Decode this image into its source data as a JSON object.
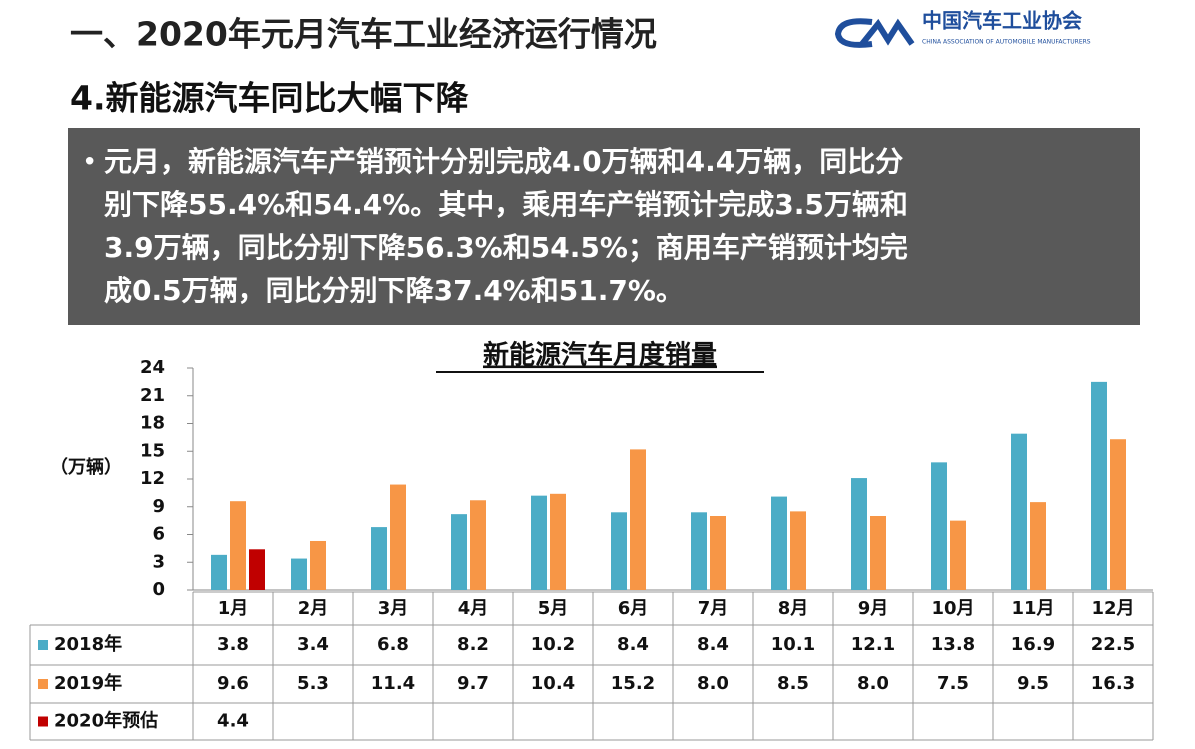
{
  "header": {
    "title": "一、2020年元月汽车工业经济运行情况",
    "logo_text": "中国汽车工业协会",
    "logo_subtext": "CHINA ASSOCIATION OF AUTOMOBILE MANUFACTURERS"
  },
  "subtitle": "4.新能源汽车同比大幅下降",
  "bullet_lines": [
    "元月，新能源汽车产销预计分别完成4.0万辆和4.4万辆，同比分",
    "别下降55.4%和54.4%。其中，乘用车产销预计完成3.5万辆和",
    "3.9万辆，同比分别下降56.3%和54.5%；商用车产销预计均完",
    "成0.5万辆，同比分别下降37.4%和51.7%。"
  ],
  "chart_data": {
    "type": "bar",
    "title": "新能源汽车月度销量",
    "y_label": "（万辆）",
    "categories": [
      "1月",
      "2月",
      "3月",
      "4月",
      "5月",
      "6月",
      "7月",
      "8月",
      "9月",
      "10月",
      "11月",
      "12月"
    ],
    "series": [
      {
        "name": "2018年",
        "color": "#4bacc6",
        "values": [
          3.8,
          3.4,
          6.8,
          8.2,
          10.2,
          8.4,
          8.4,
          10.1,
          12.1,
          13.8,
          16.9,
          22.5
        ],
        "value_labels": [
          "3.8",
          "3.4",
          "6.8",
          "8.2",
          "10.2",
          "8.4",
          "8.4",
          "10.1",
          "12.1",
          "13.8",
          "16.9",
          "22.5"
        ]
      },
      {
        "name": "2019年",
        "color": "#f79646",
        "values": [
          9.6,
          5.3,
          11.4,
          9.7,
          10.4,
          15.2,
          8.0,
          8.5,
          8.0,
          7.5,
          9.5,
          16.3
        ],
        "value_labels": [
          "9.6",
          "5.3",
          "11.4",
          "9.7",
          "10.4",
          "15.2",
          "8.0",
          "8.5",
          "8.0",
          "7.5",
          "9.5",
          "16.3"
        ]
      },
      {
        "name": "2020年预估",
        "color": "#c00000",
        "values": [
          4.4,
          null,
          null,
          null,
          null,
          null,
          null,
          null,
          null,
          null,
          null,
          null
        ],
        "value_labels": [
          "4.4",
          null,
          null,
          null,
          null,
          null,
          null,
          null,
          null,
          null,
          null,
          null
        ]
      }
    ],
    "ylim": [
      0,
      24
    ],
    "yticks": [
      0,
      3,
      6,
      9,
      12,
      15,
      18,
      21,
      24
    ]
  }
}
